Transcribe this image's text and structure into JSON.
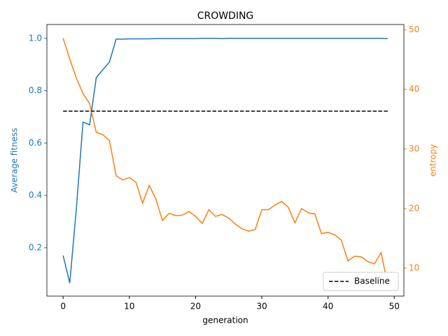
{
  "chart_data": {
    "type": "line",
    "title": "CROWDING",
    "x_label": "generation",
    "y_label": "Average fitness",
    "y2_label": "entropy",
    "x": [
      0,
      1,
      2,
      3,
      4,
      5,
      6,
      7,
      8,
      9,
      10,
      11,
      12,
      13,
      14,
      15,
      16,
      17,
      18,
      19,
      20,
      21,
      22,
      23,
      24,
      25,
      26,
      27,
      28,
      29,
      30,
      31,
      32,
      33,
      34,
      35,
      36,
      37,
      38,
      39,
      40,
      41,
      42,
      43,
      44,
      45,
      46,
      47,
      48,
      49
    ],
    "series": [
      {
        "color": "#1f77b4",
        "axis": "y",
        "values": [
          0.17,
          0.065,
          0.35,
          0.68,
          0.67,
          0.85,
          0.88,
          0.91,
          0.997,
          0.997,
          0.998,
          0.998,
          0.998,
          0.998,
          0.999,
          0.999,
          0.999,
          0.999,
          0.999,
          0.999,
          0.999,
          1.0,
          1.0,
          1.0,
          0.999,
          1.0,
          1.0,
          1.0,
          1.0,
          1.0,
          1.0,
          1.0,
          1.0,
          1.0,
          1.0,
          1.0,
          1.0,
          1.0,
          1.0,
          1.0,
          1.0,
          1.0,
          1.0,
          1.0,
          1.0,
          1.0,
          1.0,
          1.0,
          1.0,
          0.999
        ]
      },
      {
        "color": "#ff7f0e",
        "axis": "y2",
        "values": [
          48.6,
          45.1,
          41.9,
          39.3,
          37.6,
          32.8,
          32.4,
          31.4,
          25.5,
          24.8,
          25.2,
          24.4,
          20.9,
          23.9,
          21.6,
          18.0,
          19.2,
          18.8,
          18.9,
          19.5,
          18.7,
          17.5,
          19.8,
          18.7,
          19.0,
          18.4,
          17.4,
          16.6,
          16.2,
          16.5,
          19.8,
          19.8,
          20.6,
          21.2,
          20.2,
          17.6,
          20.0,
          19.3,
          19.1,
          15.8,
          16.0,
          15.6,
          14.7,
          11.2,
          12.0,
          11.9,
          11.1,
          10.7,
          12.6,
          7.3
        ]
      },
      {
        "name": "Baseline",
        "color": "#000000",
        "axis": "y",
        "dashed": true,
        "x": [
          0,
          49
        ],
        "values": [
          0.722,
          0.722
        ]
      }
    ],
    "xlim": [
      -2.45,
      51.45
    ],
    "xticks": [
      0,
      10,
      20,
      30,
      40,
      50
    ],
    "ylim": [
      0.015,
      1.053
    ],
    "yticks": [
      0.2,
      0.4,
      0.6,
      0.8,
      {
        "value": 1.0,
        "label": "1.0"
      }
    ],
    "y2lim": [
      5.3,
      50.9
    ],
    "y2ticks": [
      10,
      20,
      30,
      40,
      50
    ],
    "legend": "lower right"
  }
}
